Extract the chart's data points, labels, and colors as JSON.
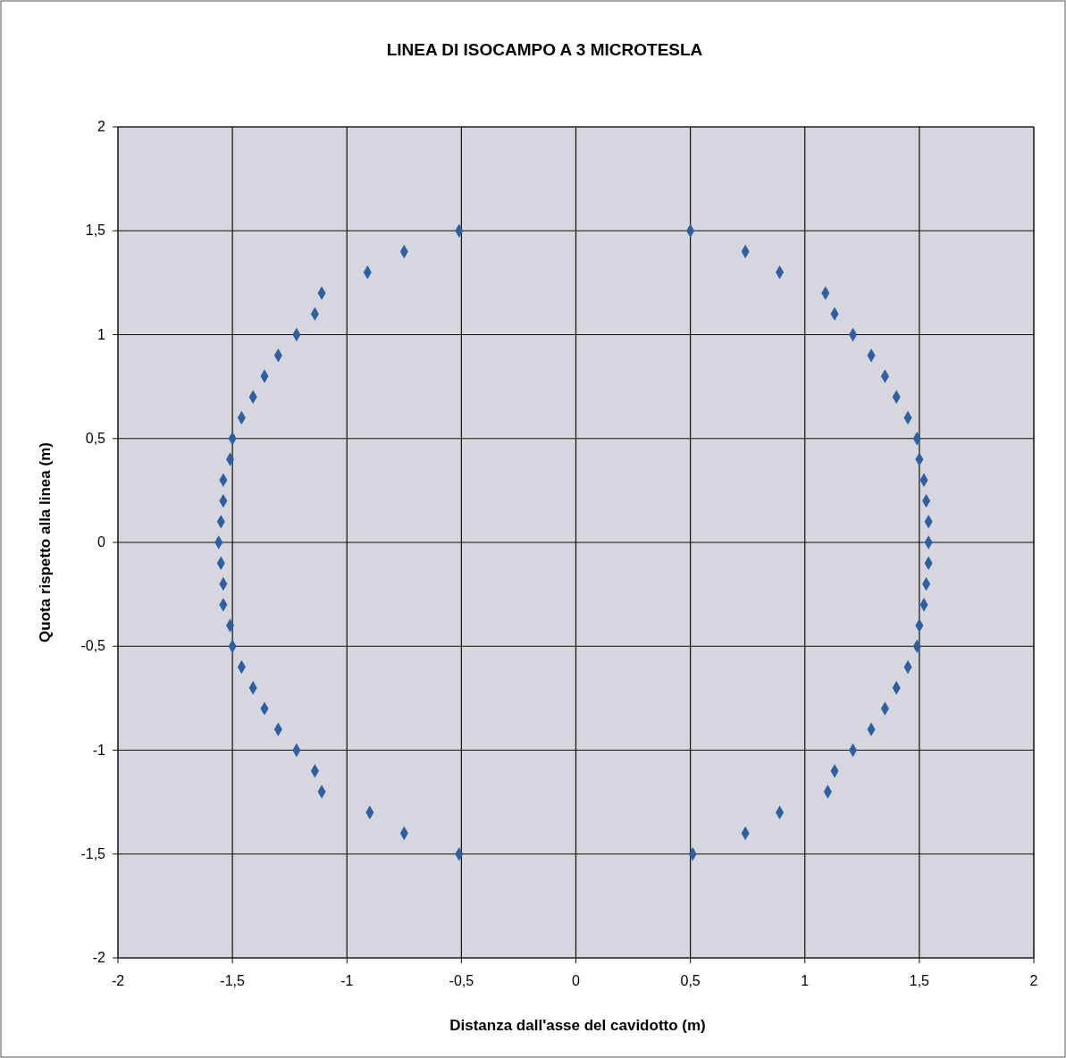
{
  "chart_data": {
    "type": "scatter",
    "title": "LINEA DI ISOCAMPO A 3 MICROTESLA",
    "xlabel": "Distanza dall'asse del cavidotto (m)",
    "ylabel": "Quota rispetto alla linea (m)",
    "x": [
      -0.51,
      -0.75,
      -0.91,
      -1.11,
      -1.14,
      -1.22,
      -1.3,
      -1.36,
      -1.41,
      -1.46,
      -1.5,
      -1.51,
      -1.54,
      -1.54,
      -1.55,
      -1.56,
      -1.55,
      -1.54,
      -1.54,
      -1.51,
      -1.5,
      -1.46,
      -1.41,
      -1.36,
      -1.3,
      -1.22,
      -1.14,
      -1.11,
      -0.9,
      -0.75,
      -0.51,
      0.5,
      0.74,
      0.89,
      1.09,
      1.13,
      1.21,
      1.29,
      1.35,
      1.4,
      1.45,
      1.49,
      1.5,
      1.52,
      1.53,
      1.54,
      1.54,
      1.54,
      1.53,
      1.52,
      1.5,
      1.49,
      1.45,
      1.4,
      1.35,
      1.29,
      1.21,
      1.13,
      1.1,
      0.89,
      0.74,
      0.51
    ],
    "values": [
      1.5,
      1.4,
      1.3,
      1.2,
      1.1,
      1.0,
      0.9,
      0.8,
      0.7,
      0.6,
      0.5,
      0.4,
      0.3,
      0.2,
      0.1,
      0,
      -0.1,
      -0.2,
      -0.3,
      -0.4,
      -0.5,
      -0.6,
      -0.7,
      -0.8,
      -0.9,
      -1.0,
      -1.1,
      -1.2,
      -1.3,
      -1.4,
      -1.5,
      1.5,
      1.4,
      1.3,
      1.2,
      1.1,
      1.0,
      0.9,
      0.8,
      0.7,
      0.6,
      0.5,
      0.4,
      0.3,
      0.2,
      0.1,
      0,
      -0.1,
      -0.2,
      -0.3,
      -0.4,
      -0.5,
      -0.6,
      -0.7,
      -0.8,
      -0.9,
      -1.0,
      -1.1,
      -1.2,
      -1.3,
      -1.4,
      -1.5
    ],
    "color": "#2e5f9e",
    "marker": "diamond",
    "grid": true,
    "xlim": [
      -2,
      2
    ],
    "xticks": [
      -2,
      {
        "value": -1.5,
        "label": "-1,5"
      },
      -1,
      {
        "value": -0.5,
        "label": "-0,5"
      },
      0,
      {
        "value": 0.5,
        "label": "0,5"
      },
      1,
      {
        "value": 1.5,
        "label": "1,5"
      },
      2
    ],
    "ylim": [
      -2,
      2
    ],
    "yticks": [
      -2,
      {
        "value": -1.5,
        "label": "-1,5"
      },
      -1,
      {
        "value": -0.5,
        "label": "-0,5"
      },
      0,
      {
        "value": 0.5,
        "label": "0,5"
      },
      1,
      {
        "value": 1.5,
        "label": "1,5"
      },
      2
    ]
  }
}
